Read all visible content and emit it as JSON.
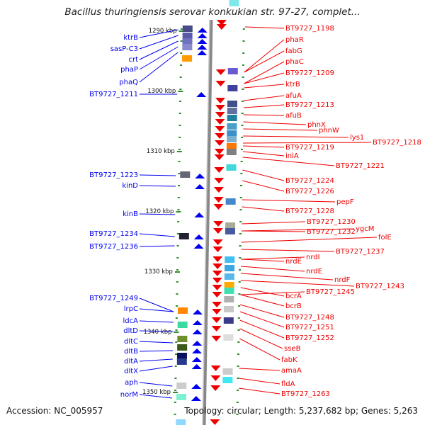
{
  "title": "Bacillus thuringiensis serovar konkukian str. 97-27, complet...",
  "footer": {
    "accession": "Accession: NC_005957",
    "topology": "Topology: circular; Length: 5,237,682 bp; Genes: 5,263"
  },
  "colors": {
    "forward": "#0000ee",
    "reverse": "#ee0000",
    "backbone": "#888888",
    "tick": "#2e8b2e"
  },
  "scale_labels": [
    "1290 kbp",
    "1300 kbp",
    "1310 kbp",
    "1320 kbp",
    "1330 kbp",
    "1340 kbp",
    "1350 kbp"
  ],
  "genes_forward": [
    "ktrB",
    "sasP-C3",
    "crt",
    "phaP",
    "phaQ",
    "BT9727_1211",
    "BT9727_1223",
    "kinD",
    "kinB",
    "BT9727_1234",
    "BT9727_1236",
    "BT9727_1249",
    "lrpC",
    "ldcA",
    "dltD",
    "dltC",
    "dltB",
    "dltA",
    "dltX",
    "aph",
    "norM"
  ],
  "genes_reverse": [
    "BT9727_1198",
    "phaR",
    "fabG",
    "phaC",
    "BT9727_1209",
    "ktrB",
    "afuA",
    "BT9727_1213",
    "afuB",
    "phnX",
    "phnW",
    "lys1",
    "BT9727_1218",
    "BT9727_1219",
    "inlA",
    "BT9727_1221",
    "BT9727_1224",
    "BT9727_1226",
    "pepF",
    "BT9727_1228",
    "BT9727_1230",
    "ygcM",
    "BT9727_1232",
    "folE",
    "BT9727_1237",
    "nrdI",
    "nrdE",
    "nrdE",
    "nrdF",
    "BT9727_1243",
    "bcrA",
    "BT9727_1245",
    "bcrB",
    "BT9727_1248",
    "BT9727_1251",
    "BT9727_1252",
    "sseB",
    "fabK",
    "amaA",
    "fldA",
    "BT9727_1263"
  ]
}
